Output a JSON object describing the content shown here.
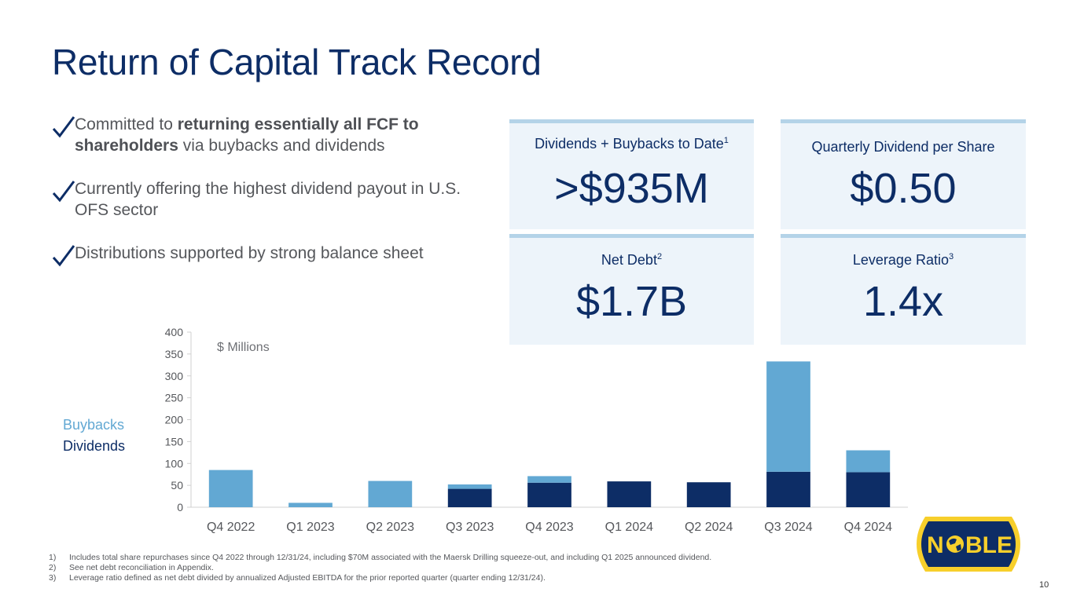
{
  "title": "Return of Capital Track Record",
  "bullets": [
    {
      "pre": "Committed to ",
      "bold": "returning essentially all FCF to shareholders",
      "post": " via buybacks and dividends"
    },
    {
      "pre": "Currently offering the highest dividend payout in U.S. OFS sector",
      "bold": "",
      "post": ""
    },
    {
      "pre": "Distributions supported by strong balance sheet",
      "bold": "",
      "post": ""
    }
  ],
  "cards": [
    {
      "label": "Dividends + Buybacks to Date",
      "sup": "1",
      "value": ">$935M"
    },
    {
      "label": "Quarterly Dividend per Share",
      "sup": "",
      "value": "$0.50"
    },
    {
      "label": "Net Debt",
      "sup": "2",
      "value": "$1.7B"
    },
    {
      "label": "Leverage Ratio",
      "sup": "3",
      "value": "1.4x"
    }
  ],
  "legend": {
    "buybacks": "Buybacks",
    "dividends": "Dividends"
  },
  "units_label": "$ Millions",
  "colors": {
    "dividends": "#0d2d66",
    "buybacks": "#62a8d3",
    "title": "#0d2d66",
    "card_bg": "#edf4fa",
    "card_border": "#b4d3e8",
    "logo_gold": "#f7cf2b"
  },
  "chart_data": {
    "type": "bar",
    "stacked": true,
    "title": "",
    "xlabel": "",
    "ylabel": "$ Millions",
    "ylim": [
      0,
      400
    ],
    "yticks": [
      0,
      50,
      100,
      150,
      200,
      250,
      300,
      350,
      400
    ],
    "categories": [
      "Q4 2022",
      "Q1 2023",
      "Q2 2023",
      "Q3 2023",
      "Q4 2023",
      "Q1 2024",
      "Q2 2024",
      "Q3 2024",
      "Q4 2024"
    ],
    "series": [
      {
        "name": "Dividends",
        "values": [
          0,
          0,
          0,
          42,
          56,
          59,
          57,
          81,
          80
        ]
      },
      {
        "name": "Buybacks",
        "values": [
          85,
          10,
          60,
          10,
          15,
          0,
          0,
          252,
          50
        ]
      }
    ]
  },
  "footnotes": [
    {
      "num": "1)",
      "text": "Includes total share repurchases since Q4 2022 through 12/31/24, including $70M associated with the Maersk Drilling squeeze-out, and including Q1 2025 announced dividend."
    },
    {
      "num": "2)",
      "text": "See net debt reconciliation in Appendix."
    },
    {
      "num": "3)",
      "text": "Leverage ratio defined as net debt divided by annualized Adjusted EBITDA for the prior reported quarter (quarter ending 12/31/24)."
    }
  ],
  "page_number": "10",
  "logo": {
    "text_left": "N",
    "text_right": "BLE",
    "globe": "globe-icon"
  }
}
